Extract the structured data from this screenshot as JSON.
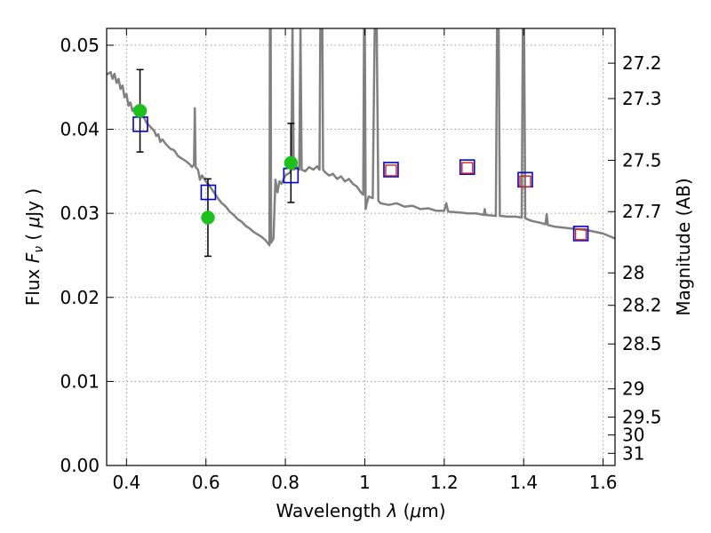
{
  "chart_data": {
    "type": "scatter",
    "xlabel": "Wavelength  λ (μm)",
    "ylabel": "Flux  F_ν  ( μJy )",
    "ylabel_parts": {
      "prefix": "Flux  ",
      "symbol": "F",
      "subscript": "ν",
      "open": "  ( ",
      "unit_sym": "μ",
      "unit": "Jy",
      "close": " )"
    },
    "xlabel_parts": {
      "prefix": "Wavelength  ",
      "symbol": "λ",
      "open": " (",
      "unit_sym": "μ",
      "unit": "m)"
    },
    "y2label": "Magnitude (AB)",
    "xlim": [
      0.35,
      1.63
    ],
    "ylim": [
      0.0,
      0.052
    ],
    "grid": true,
    "x_ticks": [
      0.4,
      0.6,
      0.8,
      1.0,
      1.2,
      1.4,
      1.6
    ],
    "x_tick_labels": [
      "0.4",
      "0.6",
      "0.8",
      "1",
      "1.2",
      "1.4",
      "1.6"
    ],
    "y_ticks": [
      0.0,
      0.01,
      0.02,
      0.03,
      0.04,
      0.05
    ],
    "y_tick_labels": [
      "0.00",
      "0.01",
      "0.02",
      "0.03",
      "0.04",
      "0.05"
    ],
    "mag_ticks": [
      27.2,
      27.3,
      27.5,
      27.7,
      28,
      28.2,
      28.5,
      29,
      29.5,
      30,
      31
    ],
    "mag_tick_labels": [
      "27.2",
      "27.3",
      "27.5",
      "27.7",
      "28",
      "28.2",
      "28.5",
      "29",
      "29.5",
      "30",
      "31"
    ],
    "series": [
      {
        "kind": "line",
        "color": "#808080",
        "points": [
          [
            0.35,
            0.0465
          ],
          [
            0.36,
            0.0468
          ],
          [
            0.365,
            0.046
          ],
          [
            0.37,
            0.0466
          ],
          [
            0.375,
            0.0455
          ],
          [
            0.38,
            0.046
          ],
          [
            0.385,
            0.0448
          ],
          [
            0.39,
            0.0452
          ],
          [
            0.395,
            0.0438
          ],
          [
            0.4,
            0.0442
          ],
          [
            0.405,
            0.0428
          ],
          [
            0.41,
            0.0432
          ],
          [
            0.415,
            0.0422
          ],
          [
            0.42,
            0.0425
          ],
          [
            0.43,
            0.042
          ],
          [
            0.44,
            0.0418
          ],
          [
            0.45,
            0.0408
          ],
          [
            0.46,
            0.0403
          ],
          [
            0.47,
            0.0398
          ],
          [
            0.475,
            0.0392
          ],
          [
            0.48,
            0.0394
          ],
          [
            0.485,
            0.0385
          ],
          [
            0.49,
            0.0388
          ],
          [
            0.5,
            0.0382
          ],
          [
            0.51,
            0.0377
          ],
          [
            0.52,
            0.0375
          ],
          [
            0.53,
            0.0368
          ],
          [
            0.54,
            0.0365
          ],
          [
            0.55,
            0.0362
          ],
          [
            0.56,
            0.0358
          ],
          [
            0.565,
            0.0355
          ],
          [
            0.57,
            0.0358
          ],
          [
            0.572,
            0.0425
          ],
          [
            0.574,
            0.0355
          ],
          [
            0.58,
            0.0352
          ],
          [
            0.585,
            0.034
          ],
          [
            0.59,
            0.0345
          ],
          [
            0.6,
            0.0338
          ],
          [
            0.61,
            0.0332
          ],
          [
            0.62,
            0.0325
          ],
          [
            0.63,
            0.0318
          ],
          [
            0.64,
            0.0312
          ],
          [
            0.65,
            0.0308
          ],
          [
            0.66,
            0.0302
          ],
          [
            0.67,
            0.0298
          ],
          [
            0.68,
            0.0293
          ],
          [
            0.69,
            0.029
          ],
          [
            0.7,
            0.0285
          ],
          [
            0.71,
            0.0282
          ],
          [
            0.72,
            0.0278
          ],
          [
            0.73,
            0.0275
          ],
          [
            0.74,
            0.0272
          ],
          [
            0.75,
            0.0268
          ],
          [
            0.755,
            0.0265
          ],
          [
            0.76,
            0.0262
          ],
          [
            0.761,
            0.052
          ],
          [
            0.763,
            0.052
          ],
          [
            0.764,
            0.0265
          ],
          [
            0.77,
            0.027
          ],
          [
            0.775,
            0.034
          ],
          [
            0.78,
            0.0325
          ],
          [
            0.785,
            0.0338
          ],
          [
            0.79,
            0.0335
          ],
          [
            0.8,
            0.0345
          ],
          [
            0.81,
            0.0348
          ],
          [
            0.815,
            0.0352
          ],
          [
            0.818,
            0.052
          ],
          [
            0.821,
            0.0352
          ],
          [
            0.83,
            0.0355
          ],
          [
            0.835,
            0.0352
          ],
          [
            0.838,
            0.052
          ],
          [
            0.841,
            0.0352
          ],
          [
            0.85,
            0.035
          ],
          [
            0.86,
            0.0355
          ],
          [
            0.87,
            0.0352
          ],
          [
            0.88,
            0.0356
          ],
          [
            0.886,
            0.0352
          ],
          [
            0.888,
            0.052
          ],
          [
            0.893,
            0.052
          ],
          [
            0.895,
            0.0352
          ],
          [
            0.9,
            0.0349
          ],
          [
            0.91,
            0.0345
          ],
          [
            0.92,
            0.0347
          ],
          [
            0.93,
            0.0341
          ],
          [
            0.94,
            0.0344
          ],
          [
            0.95,
            0.0338
          ],
          [
            0.96,
            0.0341
          ],
          [
            0.97,
            0.0335
          ],
          [
            0.98,
            0.0332
          ],
          [
            0.99,
            0.0325
          ],
          [
            0.996,
            0.0322
          ],
          [
            0.998,
            0.052
          ],
          [
            1.0,
            0.052
          ],
          [
            1.002,
            0.0305
          ],
          [
            1.005,
            0.0312
          ],
          [
            1.01,
            0.032
          ],
          [
            1.02,
            0.0318
          ],
          [
            1.025,
            0.052
          ],
          [
            1.03,
            0.052
          ],
          [
            1.034,
            0.0315
          ],
          [
            1.04,
            0.0312
          ],
          [
            1.06,
            0.031
          ],
          [
            1.08,
            0.0312
          ],
          [
            1.1,
            0.0308
          ],
          [
            1.12,
            0.0309
          ],
          [
            1.14,
            0.0305
          ],
          [
            1.16,
            0.0306
          ],
          [
            1.18,
            0.0303
          ],
          [
            1.2,
            0.0303
          ],
          [
            1.205,
            0.0312
          ],
          [
            1.21,
            0.0302
          ],
          [
            1.24,
            0.0301
          ],
          [
            1.26,
            0.03
          ],
          [
            1.28,
            0.03
          ],
          [
            1.3,
            0.0298
          ],
          [
            1.302,
            0.0305
          ],
          [
            1.304,
            0.0298
          ],
          [
            1.33,
            0.0297
          ],
          [
            1.333,
            0.052
          ],
          [
            1.337,
            0.052
          ],
          [
            1.34,
            0.0297
          ],
          [
            1.36,
            0.0296
          ],
          [
            1.38,
            0.0296
          ],
          [
            1.395,
            0.0295
          ],
          [
            1.398,
            0.052
          ],
          [
            1.401,
            0.052
          ],
          [
            1.404,
            0.0294
          ],
          [
            1.42,
            0.0291
          ],
          [
            1.44,
            0.0289
          ],
          [
            1.455,
            0.0287
          ],
          [
            1.458,
            0.0299
          ],
          [
            1.461,
            0.0286
          ],
          [
            1.48,
            0.0284
          ],
          [
            1.5,
            0.0283
          ],
          [
            1.52,
            0.0282
          ],
          [
            1.54,
            0.0281
          ],
          [
            1.56,
            0.028
          ],
          [
            1.58,
            0.0278
          ],
          [
            1.6,
            0.0276
          ],
          [
            1.62,
            0.0272
          ],
          [
            1.63,
            0.027
          ]
        ]
      },
      {
        "kind": "observed",
        "marker": "circle",
        "color": "#1ec01e",
        "points": [
          {
            "x": 0.434,
            "y": 0.0422,
            "err": 0.0049
          },
          {
            "x": 0.605,
            "y": 0.0295,
            "err": 0.0046
          },
          {
            "x": 0.814,
            "y": 0.036,
            "err": 0.0047
          }
        ]
      },
      {
        "kind": "model_blue",
        "marker": "square",
        "color": "#0000cc",
        "points": [
          {
            "x": 0.435,
            "y": 0.0406
          },
          {
            "x": 0.606,
            "y": 0.0325
          },
          {
            "x": 0.814,
            "y": 0.0345
          },
          {
            "x": 1.066,
            "y": 0.0352
          },
          {
            "x": 1.258,
            "y": 0.0355
          },
          {
            "x": 1.404,
            "y": 0.034
          },
          {
            "x": 1.544,
            "y": 0.0276
          }
        ]
      },
      {
        "kind": "model_red",
        "marker": "square-small",
        "color": "#d22020",
        "points": [
          {
            "x": 1.066,
            "y": 0.0351
          },
          {
            "x": 1.258,
            "y": 0.0354
          },
          {
            "x": 1.404,
            "y": 0.0338
          },
          {
            "x": 1.544,
            "y": 0.0275
          }
        ]
      }
    ]
  }
}
